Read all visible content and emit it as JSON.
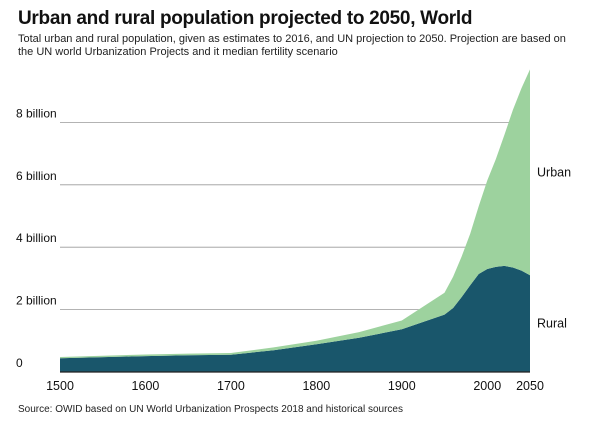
{
  "chart_data": {
    "type": "area",
    "stacked": true,
    "title": "Urban and rural population projected to 2050, World",
    "subtitle": "Total urban and rural population, given as estimates to 2016, and UN projection to 2050. Projection are based on the UN world Urbanization Projects and it median fertility scenario",
    "source": "Source: OWID based on UN World Urbanization Prospects 2018 and historical sources",
    "xlim": [
      1500,
      2050
    ],
    "ylim": [
      0,
      10
    ],
    "x_ticks": [
      {
        "value": 1500,
        "label": "1500"
      },
      {
        "value": 1600,
        "label": "1600"
      },
      {
        "value": 1700,
        "label": "1700"
      },
      {
        "value": 1800,
        "label": "1800"
      },
      {
        "value": 1900,
        "label": "1900"
      },
      {
        "value": 2000,
        "label": "2000"
      },
      {
        "value": 2050,
        "label": "2050"
      }
    ],
    "y_ticks": [
      {
        "value": 0,
        "label": "0"
      },
      {
        "value": 2,
        "label": "2 billion"
      },
      {
        "value": 4,
        "label": "4 billion"
      },
      {
        "value": 6,
        "label": "6 billion"
      },
      {
        "value": 8,
        "label": "8 billion"
      }
    ],
    "grid": true,
    "x": [
      1500,
      1600,
      1650,
      1700,
      1750,
      1800,
      1850,
      1900,
      1950,
      1960,
      1970,
      1980,
      1990,
      2000,
      2010,
      2020,
      2030,
      2040,
      2050
    ],
    "series": [
      {
        "name": "Rural",
        "color": "#19566b",
        "values": [
          0.44,
          0.51,
          0.54,
          0.55,
          0.7,
          0.89,
          1.1,
          1.37,
          1.84,
          2.05,
          2.4,
          2.78,
          3.14,
          3.3,
          3.37,
          3.4,
          3.35,
          3.25,
          3.1
        ]
      },
      {
        "name": "Urban",
        "color": "#9dd29e",
        "values": [
          0.04,
          0.05,
          0.05,
          0.06,
          0.09,
          0.11,
          0.18,
          0.28,
          0.7,
          1.0,
          1.3,
          1.65,
          2.17,
          2.84,
          3.45,
          4.2,
          5.05,
          5.85,
          6.6
        ]
      }
    ]
  }
}
